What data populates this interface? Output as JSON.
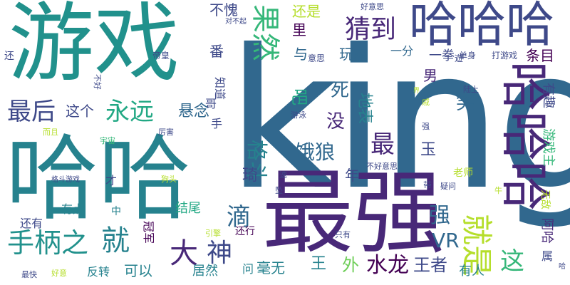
{
  "words": [
    {
      "text": "king",
      "color": "#31688e"
    },
    {
      "text": "最强",
      "color": "#482878"
    },
    {
      "text": "哈哈",
      "color": "#26828e"
    },
    {
      "text": "游戏",
      "color": "#21918c"
    },
    {
      "text": "哈哈哈",
      "color": "#3e4989"
    },
    {
      "text": "哈哈哈",
      "color": "#482878"
    },
    {
      "text": "果然",
      "color": "#35b779"
    },
    {
      "text": "猜到",
      "color": "#482878"
    },
    {
      "text": "最后",
      "color": "#3e4989"
    },
    {
      "text": "永远",
      "color": "#22a884"
    },
    {
      "text": "就是",
      "color": "#b5de2b"
    },
    {
      "text": "手柄之",
      "color": "#21918c"
    },
    {
      "text": "就",
      "color": "#26828e"
    },
    {
      "text": "大",
      "color": "#482878"
    },
    {
      "text": "神",
      "color": "#3e4989"
    },
    {
      "text": "滴",
      "color": "#31688e"
    },
    {
      "text": "格斗",
      "color": "#26828e"
    },
    {
      "text": "饿狼",
      "color": "#31688e"
    },
    {
      "text": "最",
      "color": "#482878"
    },
    {
      "text": "强",
      "color": "#31688e"
    },
    {
      "text": "水龙",
      "color": "#440154"
    },
    {
      "text": "王者",
      "color": "#3e4989"
    },
    {
      "text": "这",
      "color": "#35b779"
    },
    {
      "text": "VR",
      "color": "#31688e"
    },
    {
      "text": "悬念",
      "color": "#31688e"
    },
    {
      "text": "这个",
      "color": "#3e4989"
    },
    {
      "text": "死",
      "color": "#31688e"
    },
    {
      "text": "没",
      "color": "#482878"
    },
    {
      "text": "笑",
      "color": "#31688e"
    },
    {
      "text": "吧",
      "color": "#22a884"
    },
    {
      "text": "地表",
      "color": "#26828e"
    },
    {
      "text": "玩家",
      "color": "#31688e"
    },
    {
      "text": "一分",
      "color": "#31688e"
    },
    {
      "text": "一拳",
      "color": "#3e4989"
    },
    {
      "text": "还是",
      "color": "#b5de2b"
    },
    {
      "text": "不愧",
      "color": "#3e4989"
    },
    {
      "text": "里",
      "color": "#440154"
    },
    {
      "text": "番",
      "color": "#3e4989"
    },
    {
      "text": "与",
      "color": "#31688e"
    },
    {
      "text": "男",
      "color": "#482878"
    },
    {
      "text": "条目",
      "color": "#440154"
    },
    {
      "text": "玉",
      "color": "#3e4989"
    },
    {
      "text": "年",
      "color": "#3e4989"
    },
    {
      "text": "琦",
      "color": "#3e4989"
    },
    {
      "text": "王",
      "color": "#26828e"
    },
    {
      "text": "外",
      "color": "#6ece58"
    },
    {
      "text": "毫无",
      "color": "#26828e"
    },
    {
      "text": "问",
      "color": "#26828e"
    },
    {
      "text": "有人",
      "color": "#26828e"
    },
    {
      "text": "居然",
      "color": "#26828e"
    },
    {
      "text": "可以",
      "color": "#26828e"
    },
    {
      "text": "反转",
      "color": "#26828e"
    },
    {
      "text": "结尾",
      "color": "#22a884"
    },
    {
      "text": "有点",
      "color": "#26828e"
    },
    {
      "text": "还有",
      "color": "#3e4989"
    },
    {
      "text": "还行",
      "color": "#440154"
    },
    {
      "text": "冠军",
      "color": "#440154"
    },
    {
      "text": "手",
      "color": "#3e4989"
    },
    {
      "text": "才",
      "color": "#3e4989"
    },
    {
      "text": "中",
      "color": "#26828e"
    },
    {
      "text": "知道",
      "color": "#3e4989"
    },
    {
      "text": "哥",
      "color": "#3e4989"
    },
    {
      "text": "游戏主",
      "color": "#35b779"
    },
    {
      "text": "有趣",
      "color": "#3e4989"
    },
    {
      "text": "阿哈",
      "color": "#482878"
    },
    {
      "text": "无敌",
      "color": "#b5de2b"
    },
    {
      "text": "老师",
      "color": "#b5de2b"
    },
    {
      "text": "属",
      "color": "#3e4989"
    },
    {
      "text": "帝皇",
      "color": "#3e4989"
    },
    {
      "text": "意思",
      "color": "#3e4989"
    },
    {
      "text": "遊",
      "color": "#3e4989"
    },
    {
      "text": "单身",
      "color": "#3e4989"
    },
    {
      "text": "打游戏",
      "color": "#3e4989"
    },
    {
      "text": "好意思",
      "color": "#3e4989"
    },
    {
      "text": "对不起",
      "color": "#3e4989"
    },
    {
      "text": "不好",
      "color": "#3e4989"
    },
    {
      "text": "游泳",
      "color": "#3e4989"
    },
    {
      "text": "而且",
      "color": "#b5de2b"
    },
    {
      "text": "宇宙",
      "color": "#35b779"
    },
    {
      "text": "厉害",
      "color": "#3e4989"
    },
    {
      "text": "格斗游戏",
      "color": "#3e4989"
    },
    {
      "text": "狗头",
      "color": "#b5de2b"
    },
    {
      "text": "速",
      "color": "#3e4989"
    },
    {
      "text": "坠",
      "color": "#3e4989"
    },
    {
      "text": "不好意思",
      "color": "#3e4989"
    },
    {
      "text": "疑问",
      "color": "#3e4989"
    },
    {
      "text": "带",
      "color": "#3e4989"
    },
    {
      "text": "牛",
      "color": "#b5de2b"
    },
    {
      "text": "只有",
      "color": "#3e4989"
    },
    {
      "text": "引擎",
      "color": "#b5de2b"
    },
    {
      "text": "最快",
      "color": "#3e4989"
    },
    {
      "text": "好意",
      "color": "#b5de2b"
    },
    {
      "text": "还",
      "color": "#3e4989"
    },
    {
      "text": "陆上",
      "color": "#3e4989"
    },
    {
      "text": "戚",
      "color": "#b5de2b"
    },
    {
      "text": "强",
      "color": "#3e4989"
    },
    {
      "text": "界",
      "color": "#b5de2b"
    },
    {
      "text": "哈",
      "color": "#3e4989"
    }
  ]
}
